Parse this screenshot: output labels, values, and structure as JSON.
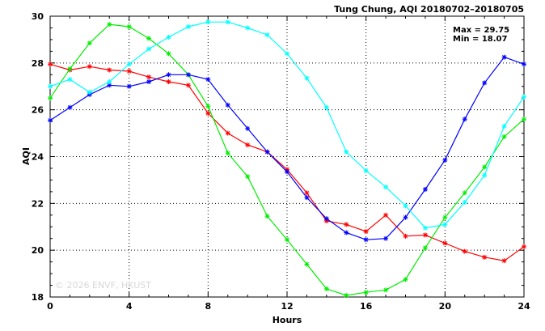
{
  "chart_data": {
    "type": "line",
    "title": "Tung Chung, AQI 20180702–20180705",
    "xlabel": "Hours",
    "ylabel": "AQI",
    "xlim": [
      0,
      24
    ],
    "ylim": [
      18,
      30
    ],
    "xticks": [
      0,
      4,
      8,
      12,
      16,
      20,
      24
    ],
    "yticks": [
      18,
      20,
      22,
      24,
      26,
      28,
      30
    ],
    "grid": true,
    "annotations": [
      "Max = 29.75",
      "Min = 18.07"
    ],
    "watermark": "© 2026 ENVF, HKUST",
    "x": [
      0,
      1,
      2,
      3,
      4,
      5,
      6,
      7,
      8,
      9,
      10,
      11,
      12,
      13,
      14,
      15,
      16,
      17,
      18,
      19,
      20,
      21,
      22,
      23,
      24
    ],
    "series": [
      {
        "color": "#ff0000",
        "values": [
          27.95,
          27.7,
          27.85,
          27.7,
          27.65,
          27.4,
          27.2,
          27.05,
          25.85,
          25.0,
          24.5,
          24.2,
          23.45,
          22.45,
          21.25,
          21.1,
          20.8,
          21.5,
          20.6,
          20.65,
          20.3,
          19.95,
          19.7,
          19.55,
          20.15
        ]
      },
      {
        "color": "#00ee00",
        "values": [
          26.5,
          27.75,
          28.85,
          29.65,
          29.55,
          29.05,
          28.4,
          27.5,
          26.15,
          24.15,
          23.15,
          21.45,
          20.45,
          19.4,
          18.35,
          18.07,
          18.2,
          18.3,
          18.75,
          20.1,
          21.4,
          22.45,
          23.55,
          24.85,
          25.6
        ]
      },
      {
        "color": "#0000ff",
        "values": [
          25.55,
          26.1,
          26.65,
          27.05,
          27.0,
          27.2,
          27.5,
          27.5,
          27.3,
          26.2,
          25.2,
          24.2,
          23.35,
          22.25,
          21.35,
          20.75,
          20.45,
          20.5,
          21.4,
          22.6,
          23.85,
          25.6,
          27.15,
          28.25,
          27.95
        ]
      },
      {
        "color": "#00ffff",
        "values": [
          27.0,
          27.3,
          26.75,
          27.2,
          27.95,
          28.6,
          29.1,
          29.55,
          29.75,
          29.75,
          29.5,
          29.2,
          28.4,
          27.35,
          26.1,
          24.2,
          23.4,
          22.7,
          21.9,
          20.95,
          21.1,
          22.05,
          23.2,
          25.3,
          26.55
        ]
      }
    ]
  }
}
